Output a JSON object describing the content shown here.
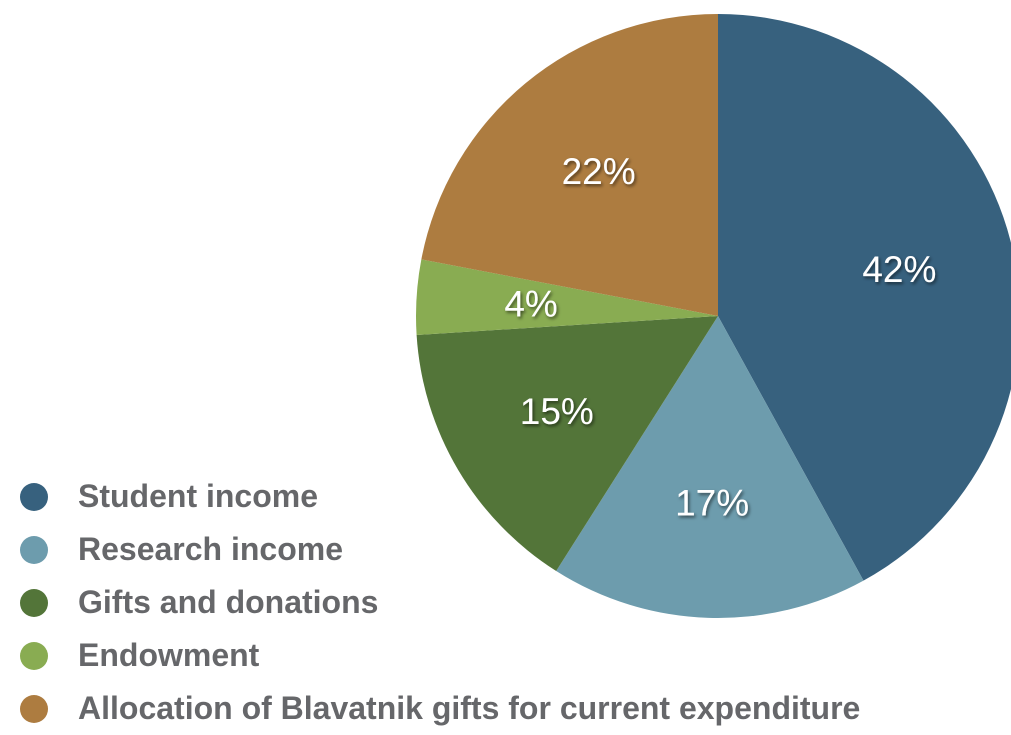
{
  "chart_data": {
    "type": "pie",
    "title": "",
    "slices": [
      {
        "label": "Student income",
        "value": 42,
        "display": "42%",
        "color": "#37617e"
      },
      {
        "label": "Research income",
        "value": 17,
        "display": "17%",
        "color": "#6d9cad"
      },
      {
        "label": "Gifts and donations",
        "value": 15,
        "display": "15%",
        "color": "#537539"
      },
      {
        "label": "Endowment",
        "value": 4,
        "display": "4%",
        "color": "#89ac52"
      },
      {
        "label": "Allocation of Blavatnik gifts for current expenditure",
        "value": 22,
        "display": "22%",
        "color": "#ad7c40"
      }
    ],
    "start_angle": "12 o'clock",
    "direction": "clockwise",
    "legend_position": "bottom-left"
  },
  "legend": {
    "text_color": "#66676a",
    "items": [
      {
        "label": "Student income",
        "color": "#37617e"
      },
      {
        "label": "Research income",
        "color": "#6d9cad"
      },
      {
        "label": "Gifts and donations",
        "color": "#537539"
      },
      {
        "label": "Endowment",
        "color": "#89ac52"
      },
      {
        "label": "Allocation of Blavatnik gifts for current expenditure",
        "color": "#ad7c40"
      }
    ]
  }
}
